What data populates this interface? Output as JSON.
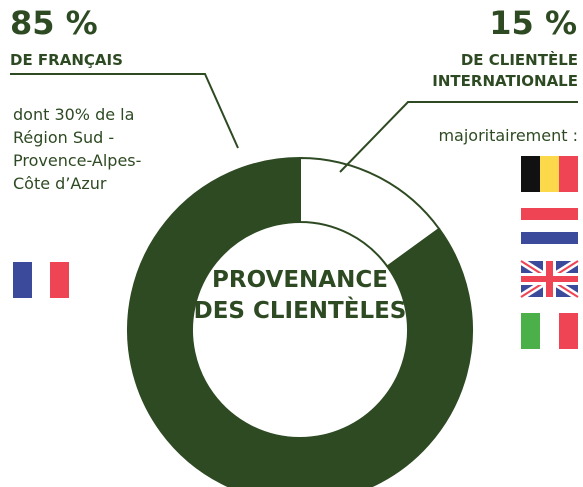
{
  "chart_data": {
    "type": "pie",
    "categories": [
      "DE FRANÇAIS",
      "DE CLIENTÈLE INTERNATIONALE"
    ],
    "values": [
      85,
      15
    ],
    "value_labels": [
      "85 %",
      "15 %"
    ],
    "colors": [
      "#2e4a23",
      "#ffffff"
    ],
    "center_label": "PROVENANCE DES CLIENTÈLES",
    "left_note": "dont 30% de la Région Sud - Provence-Alpes-Côte d’Azur",
    "right_note": "majoritairement :"
  }
}
